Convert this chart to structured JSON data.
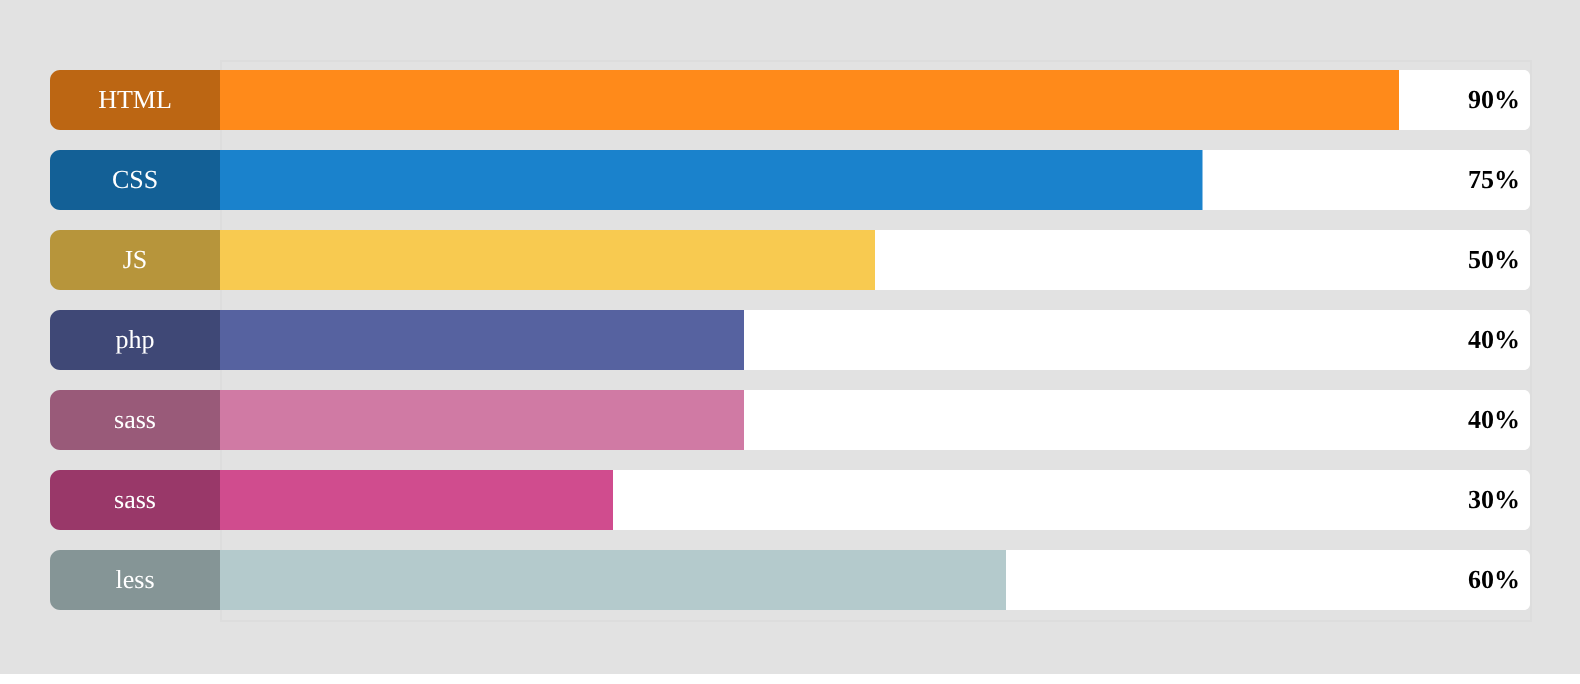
{
  "chart_data": {
    "type": "bar",
    "orientation": "horizontal",
    "categories": [
      "HTML",
      "CSS",
      "JS",
      "php",
      "sass",
      "sass",
      "less"
    ],
    "values": [
      90,
      75,
      50,
      40,
      40,
      30,
      60
    ],
    "value_labels": [
      "90%",
      "75%",
      "50%",
      "40%",
      "40%",
      "30%",
      "60%"
    ],
    "colors": [
      "#ff8a1a",
      "#1a82cc",
      "#f8ca50",
      "#5662a0",
      "#d07aa4",
      "#d04c8e",
      "#b4cacc"
    ],
    "xlim": [
      0,
      100
    ],
    "tick_labels": false
  }
}
